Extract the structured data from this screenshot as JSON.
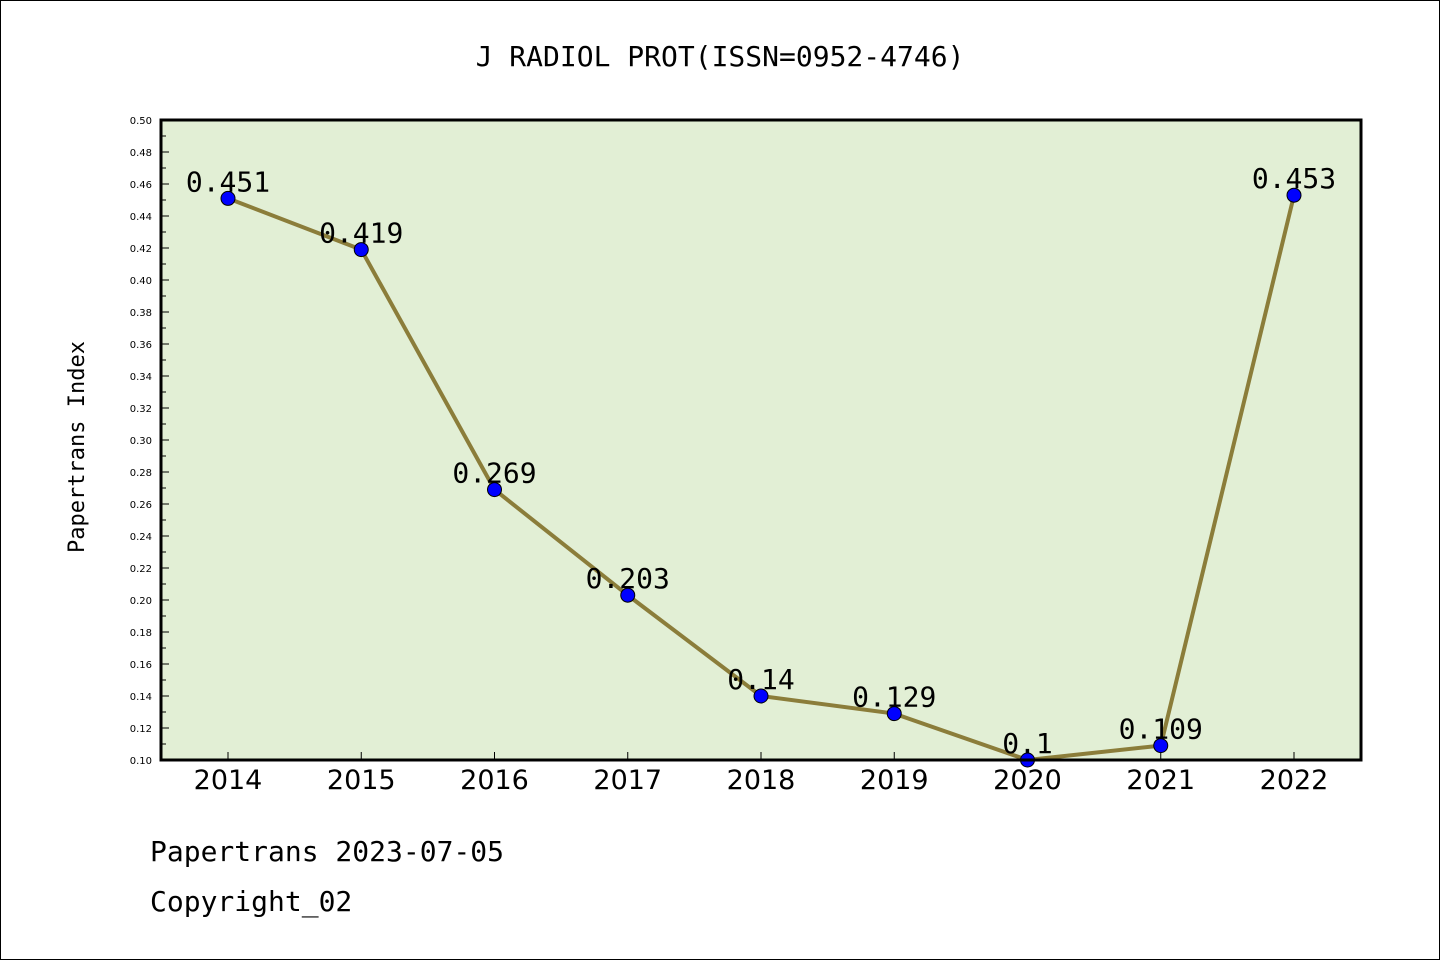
{
  "chart_data": {
    "type": "line",
    "title": "J RADIOL PROT(ISSN=0952-4746)",
    "xlabel": "",
    "ylabel": "Papertrans Index",
    "categories": [
      "2014",
      "2015",
      "2016",
      "2017",
      "2018",
      "2019",
      "2020",
      "2021",
      "2022"
    ],
    "values": [
      0.451,
      0.419,
      0.269,
      0.203,
      0.14,
      0.129,
      0.1,
      0.109,
      0.453
    ],
    "data_labels": [
      "0.451",
      "0.419",
      "0.269",
      "0.203",
      "0.14",
      "0.129",
      "0.1",
      "0.109",
      "0.453"
    ],
    "ylim": [
      0.1,
      0.5
    ],
    "yticks": [
      "0.10",
      "0.12",
      "0.14",
      "0.16",
      "0.18",
      "0.20",
      "0.22",
      "0.24",
      "0.26",
      "0.28",
      "0.30",
      "0.32",
      "0.34",
      "0.36",
      "0.38",
      "0.40",
      "0.42",
      "0.44",
      "0.46",
      "0.48",
      "0.50"
    ],
    "grid": false,
    "colors": {
      "plot_background": "#e2efd5",
      "line": "#8b7d3a",
      "marker": "#0000ff"
    }
  },
  "footer": {
    "date_line": "Papertrans 2023-07-05",
    "copyright": "Copyright_02"
  }
}
